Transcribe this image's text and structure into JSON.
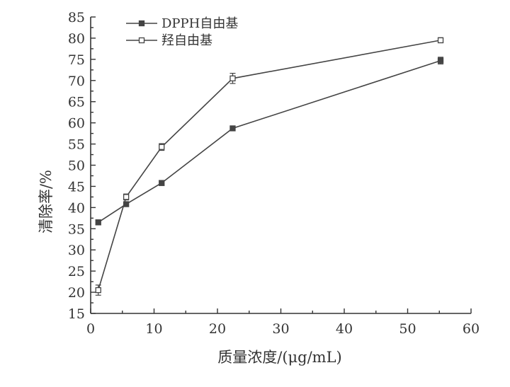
{
  "chart_data": {
    "type": "line",
    "title": "",
    "xlabel": "质量浓度/(μg/mL)",
    "ylabel": "清除率/%",
    "xlim": [
      0,
      60
    ],
    "ylim": [
      15,
      85
    ],
    "xticks": [
      "0",
      "10",
      "20",
      "30",
      "40",
      "50",
      "60"
    ],
    "yticks": [
      "15",
      "20",
      "25",
      "30",
      "35",
      "40",
      "45",
      "50",
      "55",
      "60",
      "65",
      "70",
      "75",
      "80",
      "85"
    ],
    "grid": false,
    "legend": "top-left",
    "series": [
      {
        "name": "DPPH自由基",
        "marker": "filled-square",
        "color": "#444444",
        "x": [
          1.2,
          5.6,
          11.2,
          22.4,
          55.2
        ],
        "y": [
          36.5,
          40.8,
          45.8,
          58.7,
          74.7
        ],
        "err": [
          0.6,
          0.5,
          0.6,
          0.3,
          0.8
        ]
      },
      {
        "name": "羟自由基",
        "marker": "open-square",
        "color": "#444444",
        "x": [
          1.2,
          5.6,
          11.2,
          22.4,
          55.2
        ],
        "y": [
          20.5,
          42.5,
          54.3,
          70.5,
          79.5
        ],
        "err": [
          1.2,
          0.7,
          0.8,
          1.2,
          0.6
        ]
      }
    ]
  }
}
